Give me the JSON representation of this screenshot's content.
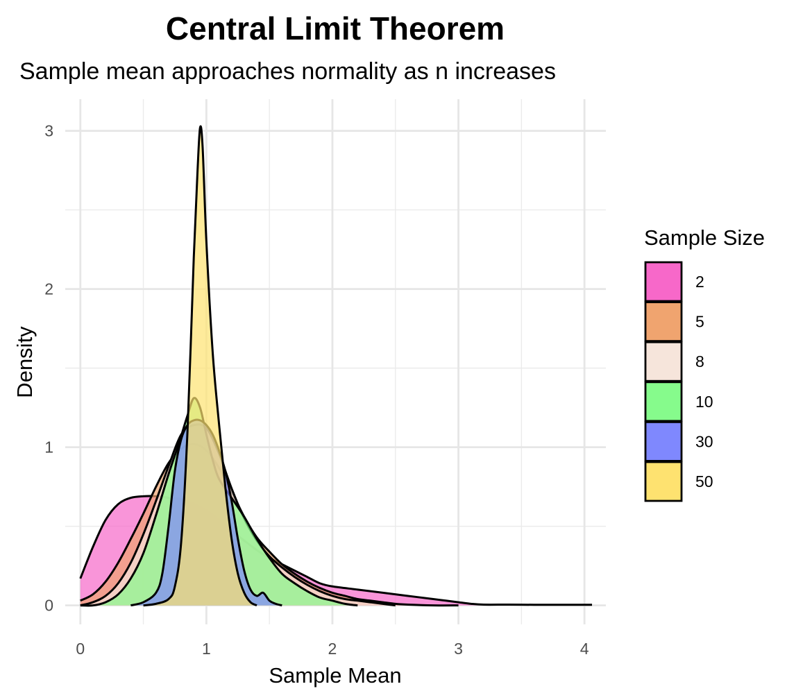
{
  "chart_data": {
    "type": "area",
    "title": "Central Limit Theorem",
    "subtitle": "Sample mean approaches normality as n increases",
    "xlabel": "Sample Mean",
    "ylabel": "Density",
    "xlim": [
      -0.12,
      4.17
    ],
    "ylim": [
      -0.12,
      3.2
    ],
    "x_ticks": [
      0,
      1,
      2,
      3,
      4
    ],
    "y_ticks": [
      0,
      1,
      2,
      3
    ],
    "grid": true,
    "legend": {
      "title": "Sample Size",
      "position": "right",
      "entries": [
        {
          "label": "2",
          "color": "#f768c9"
        },
        {
          "label": "5",
          "color": "#f0a46f"
        },
        {
          "label": "8",
          "color": "#f6e5db"
        },
        {
          "label": "10",
          "color": "#86fb8c"
        },
        {
          "label": "30",
          "color": "#7f88fe"
        },
        {
          "label": "50",
          "color": "#fee270"
        }
      ]
    },
    "series": [
      {
        "name": "2",
        "color": "#f768c9",
        "points": [
          [
            0.0,
            0.17
          ],
          [
            0.1,
            0.37
          ],
          [
            0.2,
            0.54
          ],
          [
            0.3,
            0.64
          ],
          [
            0.4,
            0.68
          ],
          [
            0.5,
            0.69
          ],
          [
            0.6,
            0.69
          ],
          [
            0.7,
            0.68
          ],
          [
            0.8,
            0.67
          ],
          [
            0.9,
            0.64
          ],
          [
            1.0,
            0.6
          ],
          [
            1.1,
            0.54
          ],
          [
            1.2,
            0.47
          ],
          [
            1.3,
            0.41
          ],
          [
            1.4,
            0.35
          ],
          [
            1.5,
            0.3
          ],
          [
            1.6,
            0.26
          ],
          [
            1.7,
            0.22
          ],
          [
            1.8,
            0.18
          ],
          [
            1.9,
            0.14
          ],
          [
            2.0,
            0.12
          ],
          [
            2.2,
            0.1
          ],
          [
            2.4,
            0.08
          ],
          [
            2.6,
            0.06
          ],
          [
            2.8,
            0.04
          ],
          [
            2.9,
            0.03
          ],
          [
            3.0,
            0.02
          ],
          [
            3.1,
            0.01
          ],
          [
            3.2,
            0.005
          ],
          [
            3.4,
            0.005
          ],
          [
            3.6,
            0.004
          ],
          [
            3.8,
            0.004
          ],
          [
            4.0,
            0.004
          ],
          [
            4.06,
            0.004
          ]
        ]
      },
      {
        "name": "5",
        "color": "#f0a46f",
        "points": [
          [
            0.0,
            0.03
          ],
          [
            0.1,
            0.07
          ],
          [
            0.2,
            0.15
          ],
          [
            0.3,
            0.27
          ],
          [
            0.4,
            0.42
          ],
          [
            0.5,
            0.58
          ],
          [
            0.6,
            0.75
          ],
          [
            0.7,
            0.9
          ],
          [
            0.8,
            0.99
          ],
          [
            0.9,
            1.02
          ],
          [
            1.0,
            0.98
          ],
          [
            1.1,
            0.87
          ],
          [
            1.2,
            0.72
          ],
          [
            1.3,
            0.56
          ],
          [
            1.4,
            0.43
          ],
          [
            1.5,
            0.34
          ],
          [
            1.6,
            0.26
          ],
          [
            1.7,
            0.2
          ],
          [
            1.8,
            0.15
          ],
          [
            1.9,
            0.11
          ],
          [
            2.0,
            0.08
          ],
          [
            2.1,
            0.06
          ],
          [
            2.2,
            0.04
          ],
          [
            2.3,
            0.03
          ],
          [
            2.4,
            0.02
          ],
          [
            2.5,
            0.01
          ],
          [
            2.6,
            0.005
          ],
          [
            2.8,
            0.0
          ],
          [
            3.0,
            0.0
          ]
        ]
      },
      {
        "name": "8",
        "color": "#f6e5db",
        "points": [
          [
            0.0,
            0.0
          ],
          [
            0.1,
            0.02
          ],
          [
            0.2,
            0.06
          ],
          [
            0.3,
            0.14
          ],
          [
            0.4,
            0.27
          ],
          [
            0.5,
            0.45
          ],
          [
            0.6,
            0.66
          ],
          [
            0.7,
            0.88
          ],
          [
            0.8,
            1.08
          ],
          [
            0.9,
            1.14
          ],
          [
            1.0,
            1.12
          ],
          [
            1.1,
            0.96
          ],
          [
            1.2,
            0.74
          ],
          [
            1.3,
            0.55
          ],
          [
            1.4,
            0.41
          ],
          [
            1.5,
            0.31
          ],
          [
            1.6,
            0.24
          ],
          [
            1.7,
            0.18
          ],
          [
            1.8,
            0.13
          ],
          [
            1.9,
            0.09
          ],
          [
            2.0,
            0.06
          ],
          [
            2.1,
            0.04
          ],
          [
            2.2,
            0.03
          ],
          [
            2.3,
            0.02
          ],
          [
            2.4,
            0.01
          ],
          [
            2.5,
            0.0
          ]
        ]
      },
      {
        "name": "10",
        "color": "#86fb8c",
        "points": [
          [
            0.0,
            0.0
          ],
          [
            0.1,
            0.0
          ],
          [
            0.2,
            0.02
          ],
          [
            0.3,
            0.07
          ],
          [
            0.4,
            0.17
          ],
          [
            0.5,
            0.33
          ],
          [
            0.6,
            0.57
          ],
          [
            0.7,
            0.83
          ],
          [
            0.78,
            1.02
          ],
          [
            0.85,
            1.2
          ],
          [
            0.9,
            1.31
          ],
          [
            0.95,
            1.25
          ],
          [
            1.0,
            1.08
          ],
          [
            1.05,
            0.92
          ],
          [
            1.1,
            0.8
          ],
          [
            1.2,
            0.68
          ],
          [
            1.3,
            0.56
          ],
          [
            1.4,
            0.42
          ],
          [
            1.5,
            0.3
          ],
          [
            1.6,
            0.2
          ],
          [
            1.7,
            0.14
          ],
          [
            1.8,
            0.09
          ],
          [
            1.9,
            0.05
          ],
          [
            2.0,
            0.03
          ],
          [
            2.1,
            0.01
          ],
          [
            2.2,
            0.0
          ]
        ]
      },
      {
        "name": "30",
        "color": "#7f88fe",
        "points": [
          [
            0.4,
            0.0
          ],
          [
            0.5,
            0.02
          ],
          [
            0.6,
            0.08
          ],
          [
            0.65,
            0.2
          ],
          [
            0.7,
            0.5
          ],
          [
            0.75,
            0.85
          ],
          [
            0.8,
            1.05
          ],
          [
            0.85,
            1.14
          ],
          [
            0.9,
            1.17
          ],
          [
            0.95,
            1.17
          ],
          [
            1.0,
            1.14
          ],
          [
            1.05,
            1.08
          ],
          [
            1.1,
            0.98
          ],
          [
            1.15,
            0.85
          ],
          [
            1.2,
            0.66
          ],
          [
            1.25,
            0.42
          ],
          [
            1.3,
            0.22
          ],
          [
            1.35,
            0.1
          ],
          [
            1.4,
            0.06
          ],
          [
            1.45,
            0.08
          ],
          [
            1.5,
            0.03
          ],
          [
            1.55,
            0.01
          ],
          [
            1.6,
            0.0
          ]
        ]
      },
      {
        "name": "50",
        "color": "#fee270",
        "points": [
          [
            0.5,
            0.0
          ],
          [
            0.6,
            0.01
          ],
          [
            0.7,
            0.04
          ],
          [
            0.75,
            0.12
          ],
          [
            0.8,
            0.4
          ],
          [
            0.85,
            1.1
          ],
          [
            0.9,
            2.2
          ],
          [
            0.93,
            2.75
          ],
          [
            0.95,
            3.02
          ],
          [
            0.97,
            2.9
          ],
          [
            1.0,
            2.3
          ],
          [
            1.05,
            1.6
          ],
          [
            1.1,
            1.15
          ],
          [
            1.15,
            0.75
          ],
          [
            1.2,
            0.42
          ],
          [
            1.25,
            0.2
          ],
          [
            1.3,
            0.08
          ],
          [
            1.35,
            0.02
          ],
          [
            1.4,
            0.0
          ]
        ]
      }
    ]
  }
}
